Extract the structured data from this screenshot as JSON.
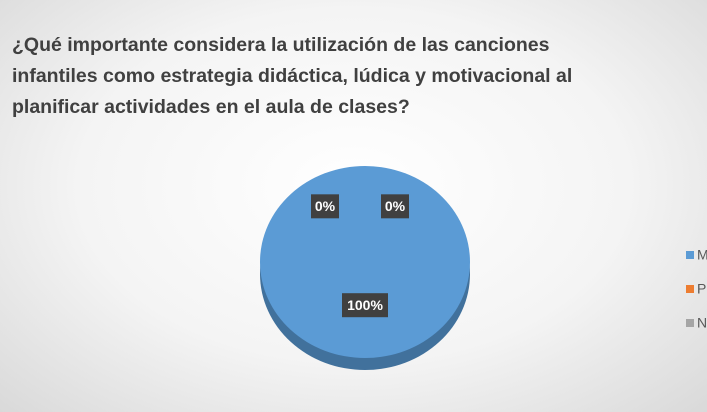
{
  "chart_data": {
    "type": "pie",
    "title": "¿Qué importante considera la utilización de las canciones infantiles como estrategia didáctica, lúdica y motivacional al planificar actividades en el aula de clases?",
    "categories": [
      "MI",
      "PI",
      "NI"
    ],
    "values": [
      100,
      0,
      0
    ],
    "value_labels": [
      "100%",
      "0%",
      "0%"
    ],
    "colors": [
      "#5b9bd5",
      "#ed7d31",
      "#a5a5a5"
    ],
    "legend": "right"
  }
}
